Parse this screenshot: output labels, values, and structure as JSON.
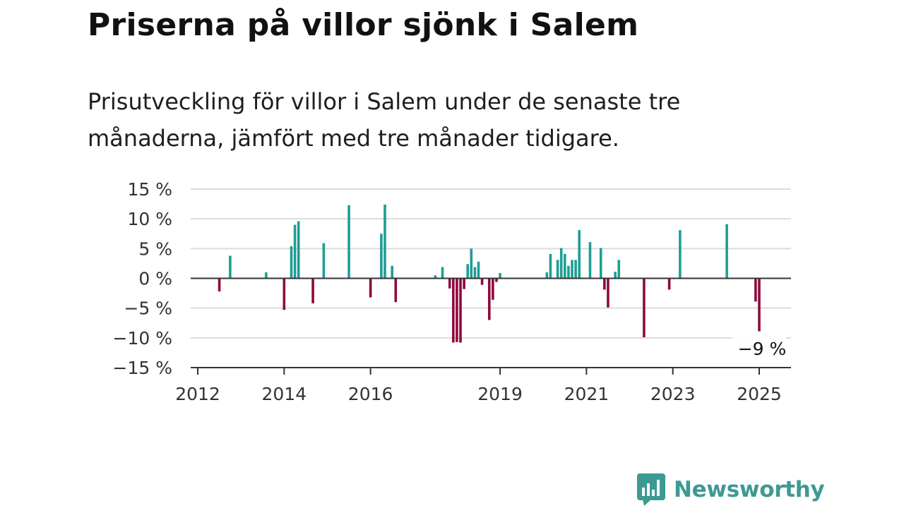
{
  "header": {
    "title": "Priserna på villor sjönk i Salem",
    "subtitle": "Prisutveckling för villor i Salem under de senaste tre månaderna, jämfört med tre månader tidigare."
  },
  "chart_data": {
    "type": "bar",
    "x_type": "date",
    "ylim": [
      -15,
      15
    ],
    "yticks": [
      15,
      10,
      5,
      0,
      -5,
      -10,
      -15
    ],
    "ytick_labels": [
      "15 %",
      "10 %",
      "5 %",
      "0 %",
      "−5 %",
      "−10 %",
      "−15 %"
    ],
    "xticks": [
      "2012-01",
      "2014-01",
      "2016-01",
      "2019-01",
      "2021-01",
      "2023-01",
      "2025-01"
    ],
    "xtick_labels": [
      "2012",
      "2014",
      "2016",
      "2019",
      "2021",
      "2023",
      "2025"
    ],
    "grid": true,
    "colors": {
      "positive": "#1f9e94",
      "negative": "#8e0a3f"
    },
    "annotation": {
      "x": "2025-01",
      "label": "−9 %"
    },
    "points": [
      {
        "x": "2012-07",
        "y": -2.2
      },
      {
        "x": "2012-10",
        "y": 3.8
      },
      {
        "x": "2013-08",
        "y": 1.0
      },
      {
        "x": "2014-01",
        "y": -5.3
      },
      {
        "x": "2014-03",
        "y": 5.4
      },
      {
        "x": "2014-04",
        "y": 9.0
      },
      {
        "x": "2014-05",
        "y": 9.6
      },
      {
        "x": "2014-09",
        "y": -4.2
      },
      {
        "x": "2014-12",
        "y": 5.9
      },
      {
        "x": "2015-07",
        "y": 12.3
      },
      {
        "x": "2016-01",
        "y": -3.2
      },
      {
        "x": "2016-04",
        "y": 7.5
      },
      {
        "x": "2016-05",
        "y": 12.4
      },
      {
        "x": "2016-07",
        "y": 2.1
      },
      {
        "x": "2016-08",
        "y": -4.0
      },
      {
        "x": "2017-07",
        "y": 0.5
      },
      {
        "x": "2017-09",
        "y": 1.9
      },
      {
        "x": "2017-11",
        "y": -1.7
      },
      {
        "x": "2017-12",
        "y": -10.8
      },
      {
        "x": "2018-01",
        "y": -10.7
      },
      {
        "x": "2018-02",
        "y": -10.8
      },
      {
        "x": "2018-03",
        "y": -1.8
      },
      {
        "x": "2018-04",
        "y": 2.4
      },
      {
        "x": "2018-05",
        "y": 5.0
      },
      {
        "x": "2018-06",
        "y": 1.9
      },
      {
        "x": "2018-07",
        "y": 2.8
      },
      {
        "x": "2018-08",
        "y": -1.1
      },
      {
        "x": "2018-10",
        "y": -7.0
      },
      {
        "x": "2018-11",
        "y": -3.6
      },
      {
        "x": "2018-12",
        "y": -0.6
      },
      {
        "x": "2019-01",
        "y": 0.9
      },
      {
        "x": "2020-02",
        "y": 1.0
      },
      {
        "x": "2020-03",
        "y": 4.1
      },
      {
        "x": "2020-05",
        "y": 3.1
      },
      {
        "x": "2020-06",
        "y": 5.1
      },
      {
        "x": "2020-07",
        "y": 4.1
      },
      {
        "x": "2020-08",
        "y": 2.1
      },
      {
        "x": "2020-09",
        "y": 3.1
      },
      {
        "x": "2020-10",
        "y": 3.1
      },
      {
        "x": "2020-11",
        "y": 8.1
      },
      {
        "x": "2021-02",
        "y": 6.1
      },
      {
        "x": "2021-05",
        "y": 5.1
      },
      {
        "x": "2021-06",
        "y": -1.9
      },
      {
        "x": "2021-07",
        "y": -4.9
      },
      {
        "x": "2021-09",
        "y": 1.1
      },
      {
        "x": "2021-10",
        "y": 3.1
      },
      {
        "x": "2022-05",
        "y": -9.9
      },
      {
        "x": "2022-12",
        "y": -1.9
      },
      {
        "x": "2023-03",
        "y": 8.1
      },
      {
        "x": "2024-04",
        "y": 9.1
      },
      {
        "x": "2024-12",
        "y": -3.9
      },
      {
        "x": "2025-01",
        "y": -8.9
      }
    ]
  },
  "footer": {
    "logo_text": "Newsworthy",
    "logo_icon": "bar-chart-speech-bubble-icon"
  }
}
